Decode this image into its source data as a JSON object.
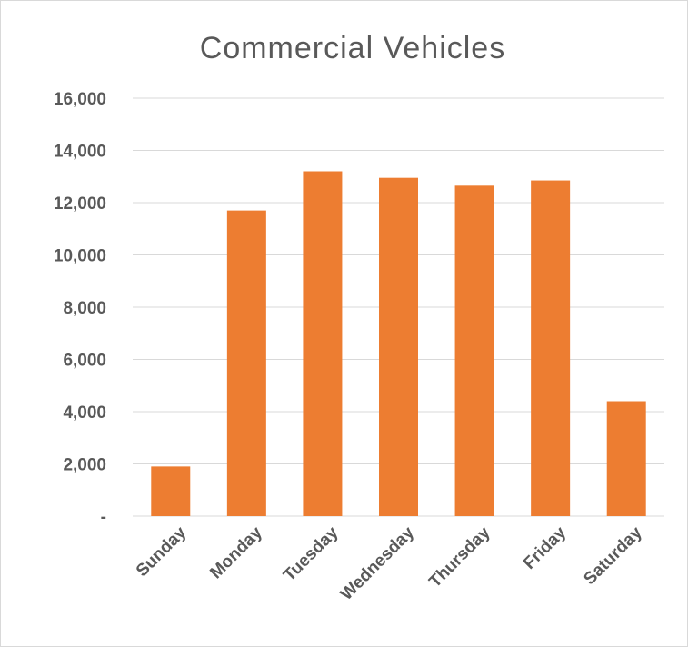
{
  "chart_data": {
    "type": "bar",
    "title": "Commercial Vehicles",
    "xlabel": "",
    "ylabel": "",
    "categories": [
      "Sunday",
      "Monday",
      "Tuesday",
      "Wednesday",
      "Thursday",
      "Friday",
      "Saturday"
    ],
    "values": [
      1900,
      11700,
      13200,
      12950,
      12650,
      12850,
      4400
    ],
    "ylim": [
      0,
      16000
    ],
    "yticks": [
      0,
      2000,
      4000,
      6000,
      8000,
      10000,
      12000,
      14000,
      16000
    ],
    "ytick_labels": [
      "-",
      "2,000",
      "4,000",
      "6,000",
      "8,000",
      "10,000",
      "12,000",
      "14,000",
      "16,000"
    ],
    "grid": true,
    "legend": "none",
    "bar_color": "#ED7D31",
    "gridline_color": "#D9D9D9",
    "text_color": "#595959"
  }
}
